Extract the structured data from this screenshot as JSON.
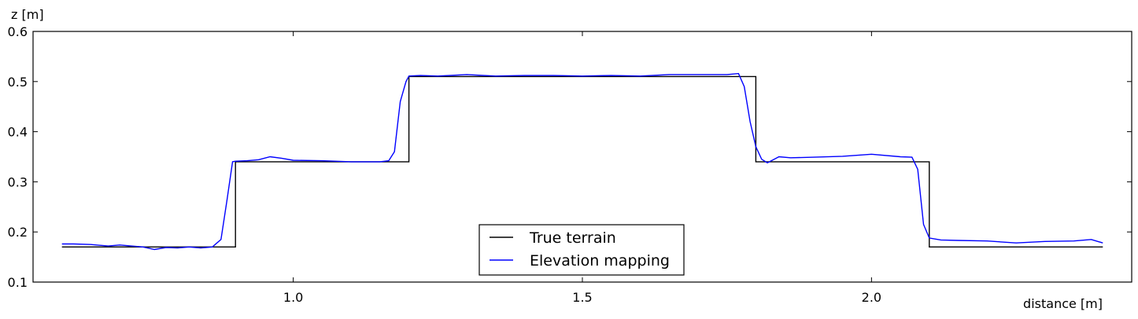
{
  "chart_data": {
    "type": "line",
    "title": "",
    "xlabel": "distance [m]",
    "ylabel": "z [m]",
    "xlim": [
      0.55,
      2.45
    ],
    "ylim": [
      0.1,
      0.6
    ],
    "xticks": [
      1.0,
      1.5,
      2.0
    ],
    "xtick_labels": [
      "1.0",
      "1.5",
      "2.0"
    ],
    "yticks": [
      0.1,
      0.2,
      0.3,
      0.4,
      0.5,
      0.6
    ],
    "ytick_labels": [
      "0.1",
      "0.2",
      "0.3",
      "0.4",
      "0.5",
      "0.6"
    ],
    "grid": false,
    "legend_position": "lower-center",
    "series": [
      {
        "name": "True terrain",
        "color": "#000000",
        "x": [
          0.6,
          0.9,
          0.9,
          1.2,
          1.2,
          1.8,
          1.8,
          2.1,
          2.1,
          2.4
        ],
        "y": [
          0.17,
          0.17,
          0.34,
          0.34,
          0.51,
          0.51,
          0.34,
          0.34,
          0.17,
          0.17
        ]
      },
      {
        "name": "Elevation mapping",
        "color": "#0000ff",
        "x": [
          0.6,
          0.62,
          0.65,
          0.68,
          0.7,
          0.72,
          0.74,
          0.76,
          0.78,
          0.8,
          0.82,
          0.84,
          0.86,
          0.875,
          0.885,
          0.895,
          0.9,
          0.92,
          0.94,
          0.96,
          0.98,
          1.0,
          1.05,
          1.1,
          1.15,
          1.165,
          1.175,
          1.185,
          1.195,
          1.2,
          1.22,
          1.25,
          1.3,
          1.35,
          1.4,
          1.45,
          1.5,
          1.55,
          1.6,
          1.65,
          1.7,
          1.75,
          1.77,
          1.78,
          1.79,
          1.8,
          1.81,
          1.82,
          1.84,
          1.86,
          1.9,
          1.95,
          2.0,
          2.05,
          2.07,
          2.08,
          2.09,
          2.1,
          2.12,
          2.15,
          2.2,
          2.25,
          2.3,
          2.35,
          2.38,
          2.4
        ],
        "y": [
          0.176,
          0.176,
          0.175,
          0.172,
          0.174,
          0.172,
          0.17,
          0.165,
          0.169,
          0.168,
          0.17,
          0.168,
          0.17,
          0.185,
          0.26,
          0.34,
          0.341,
          0.342,
          0.344,
          0.35,
          0.347,
          0.343,
          0.342,
          0.34,
          0.34,
          0.342,
          0.36,
          0.46,
          0.5,
          0.511,
          0.512,
          0.511,
          0.514,
          0.511,
          0.512,
          0.512,
          0.511,
          0.512,
          0.511,
          0.514,
          0.514,
          0.514,
          0.516,
          0.49,
          0.42,
          0.37,
          0.345,
          0.338,
          0.35,
          0.348,
          0.349,
          0.351,
          0.355,
          0.35,
          0.349,
          0.325,
          0.215,
          0.188,
          0.184,
          0.183,
          0.182,
          0.178,
          0.181,
          0.182,
          0.185,
          0.178
        ]
      }
    ]
  }
}
